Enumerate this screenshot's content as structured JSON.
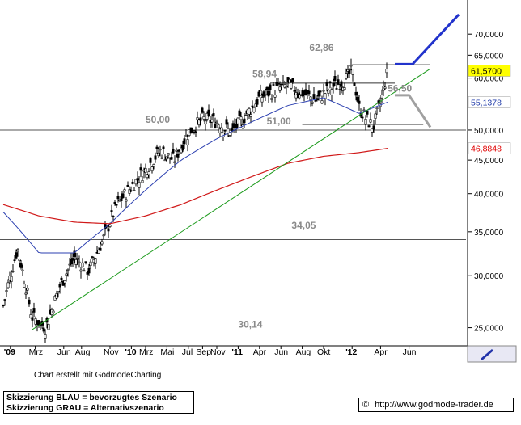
{
  "chart_data": {
    "type": "candlestick",
    "y_scale": "log",
    "ylim": [
      24000,
      78000
    ],
    "y_ticks": [
      "25,0000",
      "30,0000",
      "35,0000",
      "40,0000",
      "45,0000",
      "50,0000",
      "55,0000",
      "60,0000",
      "65,0000",
      "70,0000"
    ],
    "x_ticks": [
      "'09",
      "Mrz",
      "Jun",
      "Aug",
      "Nov",
      "'10",
      "Mrz",
      "Mai",
      "Jul",
      "Sep",
      "Nov",
      "'11",
      "Apr",
      "Jun",
      "Aug",
      "Okt",
      "'12",
      "Apr",
      "Jun"
    ],
    "price_labels": [
      {
        "text": "61,5700",
        "bg": "#ffff00",
        "fg": "#000000"
      },
      {
        "text": "55,1378",
        "bg": "#ffffff",
        "fg": "#1f3aa8"
      },
      {
        "text": "46,8848",
        "bg": "#ffffff",
        "fg": "#e00000"
      }
    ],
    "annotations": [
      "62,86",
      "58,94",
      "56,50",
      "50,00",
      "51,00",
      "34,05",
      "30,14"
    ],
    "horizontal_levels": [
      50000,
      34050,
      58940,
      62860
    ],
    "series": [
      {
        "name": "price",
        "values_description_free": true,
        "key_points": [
          [
            0,
            27000
          ],
          [
            4,
            33000
          ],
          [
            8,
            26000
          ],
          [
            12,
            25000
          ],
          [
            16,
            29000
          ],
          [
            20,
            32000
          ],
          [
            24,
            30500
          ],
          [
            28,
            34000
          ],
          [
            32,
            38500
          ],
          [
            36,
            41000
          ],
          [
            40,
            43500
          ],
          [
            44,
            46500
          ],
          [
            48,
            45000
          ],
          [
            52,
            49500
          ],
          [
            56,
            52000
          ],
          [
            60,
            51500
          ],
          [
            64,
            49500
          ],
          [
            68,
            52500
          ],
          [
            72,
            56000
          ],
          [
            76,
            57500
          ],
          [
            80,
            58500
          ],
          [
            84,
            57000
          ],
          [
            88,
            55500
          ],
          [
            92,
            58000
          ],
          [
            96,
            59500
          ],
          [
            98,
            61500
          ],
          [
            100,
            54000
          ],
          [
            102,
            52000
          ],
          [
            104,
            50500
          ],
          [
            106,
            55000
          ],
          [
            108,
            61570
          ]
        ]
      },
      {
        "name": "ma_blue",
        "key_points": [
          [
            0,
            37500
          ],
          [
            10,
            32500
          ],
          [
            20,
            32500
          ],
          [
            30,
            36000
          ],
          [
            40,
            40500
          ],
          [
            50,
            45000
          ],
          [
            60,
            48500
          ],
          [
            70,
            51500
          ],
          [
            80,
            54500
          ],
          [
            90,
            56000
          ],
          [
            100,
            53000
          ],
          [
            108,
            55138
          ]
        ]
      },
      {
        "name": "ma_red",
        "key_points": [
          [
            0,
            38500
          ],
          [
            10,
            37000
          ],
          [
            20,
            36200
          ],
          [
            30,
            36000
          ],
          [
            40,
            37000
          ],
          [
            50,
            38500
          ],
          [
            60,
            40500
          ],
          [
            70,
            42500
          ],
          [
            80,
            44500
          ],
          [
            90,
            45600
          ],
          [
            100,
            46200
          ],
          [
            108,
            46885
          ]
        ]
      },
      {
        "name": "trendline_green",
        "key_points": [
          [
            8,
            24800
          ],
          [
            120,
            62000
          ]
        ]
      },
      {
        "name": "scenario_blue",
        "key_points": [
          [
            110,
            63000
          ],
          [
            115,
            63000
          ],
          [
            128,
            75000
          ]
        ]
      },
      {
        "name": "scenario_gray",
        "key_points": [
          [
            110,
            56500
          ],
          [
            114,
            56500
          ],
          [
            120,
            50500
          ]
        ]
      }
    ]
  },
  "footer": {
    "credit": "Chart erstellt mit GodmodeCharting",
    "legend_line1": "Skizzierung BLAU = bevorzugtes Szenario",
    "legend_line2": "Skizzierung GRAU = Alternativszenario",
    "url": "http://www.godmode-trader.de",
    "copyright_symbol": "©"
  },
  "colors": {
    "candle": "#000000",
    "ma_blue": "#2b3fb0",
    "ma_red": "#d01818",
    "trend": "#1a9a1a",
    "scenario_blue": "#2233cc",
    "scenario_gray": "#a0a0a0",
    "annotation": "#8a8a8a"
  },
  "icons": {
    "corner": "pencil-arrow-icon"
  }
}
